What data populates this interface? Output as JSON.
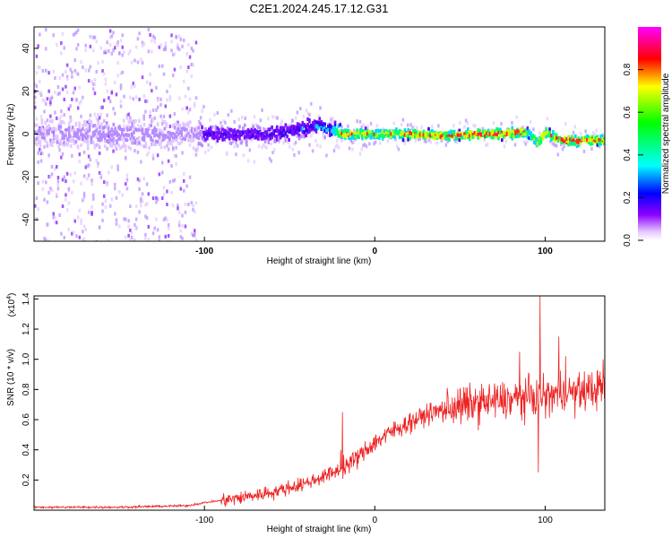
{
  "title": "C2E1.2024.245.17.12.G31",
  "chart_data": [
    {
      "type": "heatmap",
      "title": "C2E1.2024.245.17.12.G31",
      "xlabel": "Height of straight line (km)",
      "ylabel": "Frequency (Hz)",
      "xlim": [
        -200,
        135
      ],
      "ylim": [
        -50,
        50
      ],
      "xticks": [
        -100,
        0,
        100
      ],
      "yticks": [
        -40,
        -20,
        0,
        20,
        40
      ],
      "colorbar": {
        "label": "Normalized spectral amplitude",
        "range": [
          0,
          1
        ],
        "ticks": [
          0.0,
          0.2,
          0.4,
          0.6,
          0.8
        ],
        "colors": [
          "#ffffff",
          "#8b00ff",
          "#0000ff",
          "#00ffff",
          "#00ff00",
          "#ffff00",
          "#ff0000",
          "#ff00ff"
        ]
      },
      "ridge": {
        "x": [
          -200,
          -150,
          -105,
          -100,
          -60,
          -45,
          -35,
          -25,
          -20,
          0,
          20,
          40,
          60,
          75,
          85,
          90,
          95,
          100,
          105,
          110,
          120,
          135
        ],
        "frequency": [
          0,
          0,
          0,
          0,
          0,
          2,
          4,
          2,
          0,
          0,
          0,
          -1,
          0,
          0,
          1,
          0,
          -4,
          1,
          -2,
          -3,
          -3,
          -3
        ],
        "amplitude": [
          0.1,
          0.12,
          0.1,
          0.3,
          0.32,
          0.35,
          0.4,
          0.45,
          0.8,
          0.75,
          0.8,
          0.78,
          0.85,
          0.9,
          0.85,
          0.6,
          0.7,
          0.75,
          0.85,
          0.85,
          0.85,
          0.8
        ]
      }
    },
    {
      "type": "line",
      "xlabel": "Height of straight line (km)",
      "ylabel": "SNR (10 * v/v)",
      "multiplier_label": "(x10^4)",
      "xlim": [
        -200,
        135
      ],
      "ylim": [
        0,
        1.42
      ],
      "xticks": [
        -100,
        0,
        100
      ],
      "yticks": [
        0.2,
        0.4,
        0.6,
        0.8,
        1.0,
        1.2,
        1.4
      ],
      "color": "#ee2222",
      "trend": {
        "x": [
          -200,
          -150,
          -110,
          -100,
          -80,
          -60,
          -40,
          -20,
          -10,
          0,
          10,
          20,
          30,
          40,
          50,
          60,
          70,
          80,
          90,
          100,
          110,
          120,
          135
        ],
        "y": [
          0.02,
          0.02,
          0.03,
          0.05,
          0.08,
          0.12,
          0.18,
          0.27,
          0.35,
          0.45,
          0.52,
          0.58,
          0.63,
          0.67,
          0.69,
          0.71,
          0.72,
          0.73,
          0.75,
          0.75,
          0.78,
          0.78,
          0.82
        ]
      },
      "spikes": [
        {
          "x": -19,
          "y": 0.65
        },
        {
          "x": -20,
          "y": 0.4
        },
        {
          "x": 97,
          "y": 1.42
        },
        {
          "x": 96,
          "y": 0.25
        },
        {
          "x": 85,
          "y": 1.05
        },
        {
          "x": 108,
          "y": 1.15
        },
        {
          "x": 112,
          "y": 1.02
        },
        {
          "x": 134,
          "y": 1.0
        }
      ]
    }
  ]
}
